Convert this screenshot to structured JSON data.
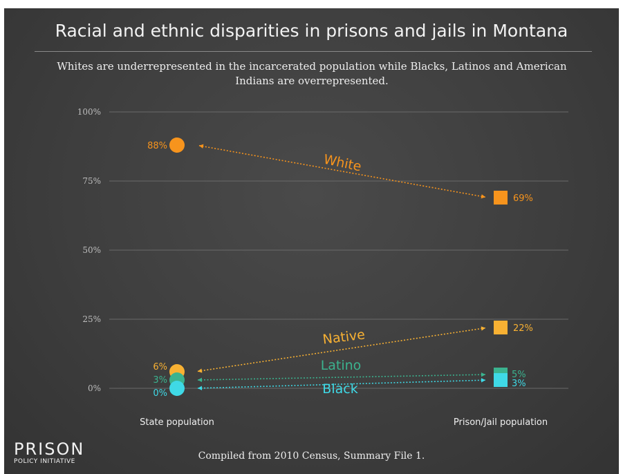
{
  "chart_data": {
    "type": "slope",
    "title": "Racial and ethnic disparities in prisons and jails in Montana",
    "subtitle": "Whites are underrepresented in the incarcerated population while Blacks, Latinos and American Indians are overrepresented.",
    "categories": [
      "State population",
      "Prison/Jail population"
    ],
    "y_ticks": [
      "100%",
      "75%",
      "50%",
      "25%",
      "0%"
    ],
    "y_tick_values": [
      100,
      75,
      50,
      25,
      0
    ],
    "ylim": [
      0,
      100
    ],
    "grid": true,
    "series": [
      {
        "name": "White",
        "values": [
          88,
          69
        ],
        "labels": [
          "88%",
          "69%"
        ],
        "color": "#f7941d"
      },
      {
        "name": "Native",
        "values": [
          6,
          22
        ],
        "labels": [
          "6%",
          "22%"
        ],
        "color": "#f8b133"
      },
      {
        "name": "Latino",
        "values": [
          3,
          5
        ],
        "labels": [
          "3%",
          "5%"
        ],
        "color": "#3bb38f"
      },
      {
        "name": "Black",
        "values": [
          0,
          3
        ],
        "labels": [
          "0%",
          "3%"
        ],
        "color": "#3fd9e6"
      }
    ]
  },
  "footer": {
    "source": "Compiled from 2010 Census, Summary File 1.",
    "logo_line1": "PRISON",
    "logo_line2": "POLICY INITIATIVE"
  }
}
